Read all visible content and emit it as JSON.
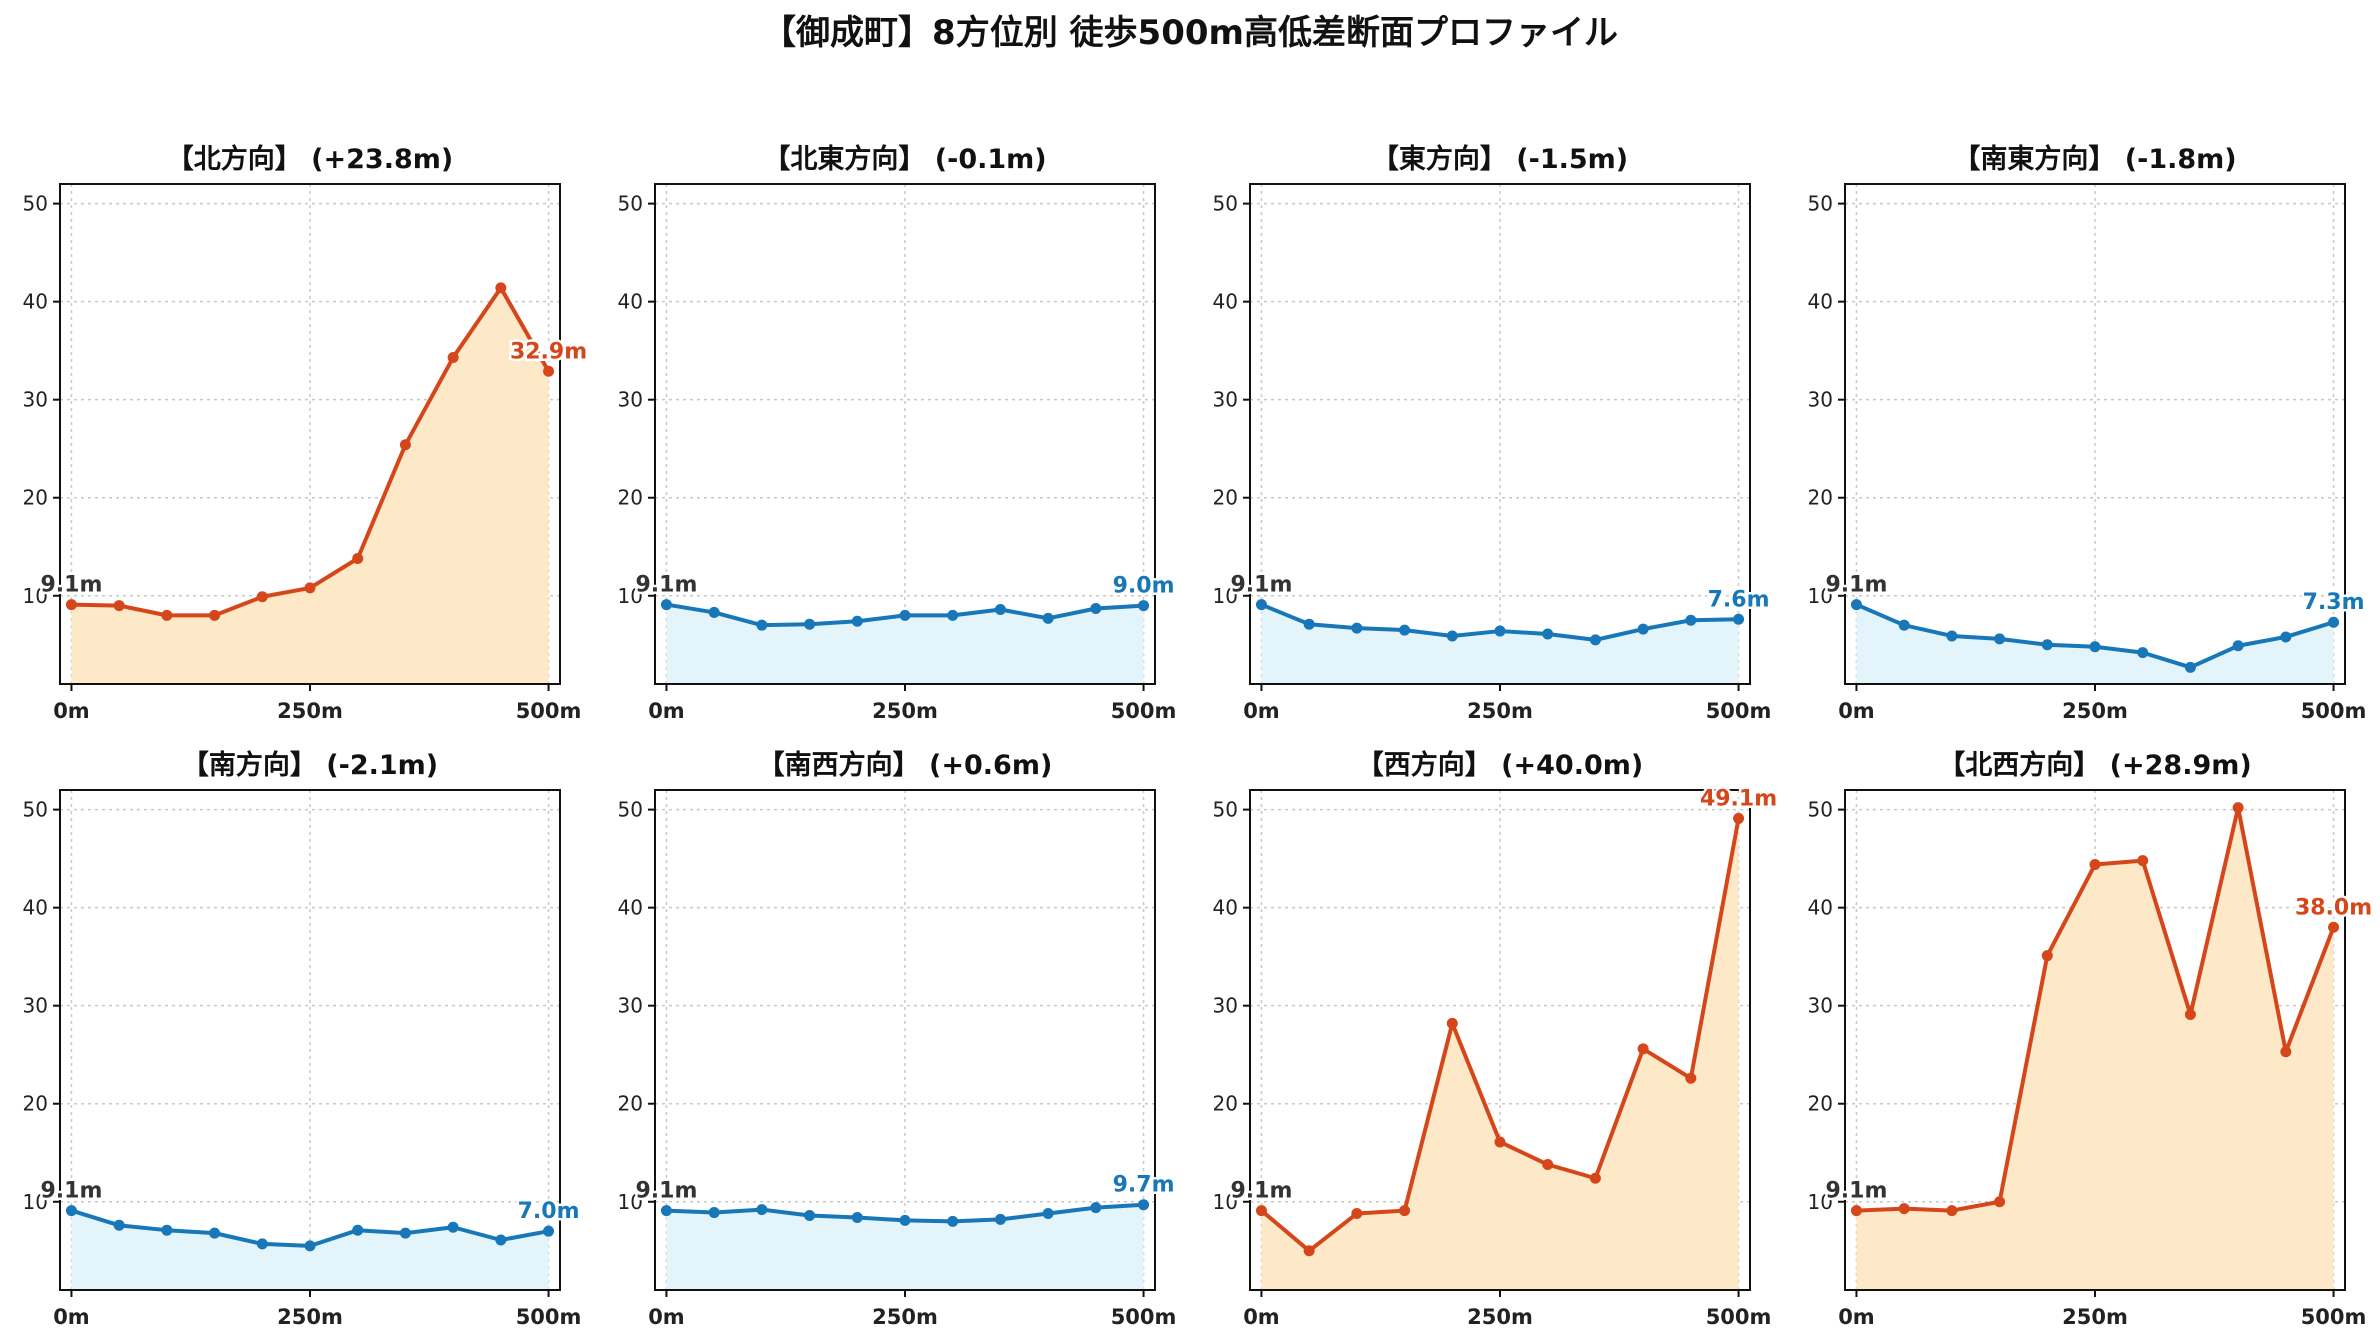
{
  "title": "【御成町】8方位別 徒歩500m高低差断面プロファイル",
  "colors": {
    "up_line": "#d6461b",
    "up_fill": "#fde8c8",
    "down_line": "#1777b8",
    "down_fill": "#e4f4fb",
    "start_label": "#333333"
  },
  "chart_data": [
    {
      "type": "area",
      "title": "【北方向】 (+23.8m)",
      "trend": "up",
      "x": [
        0,
        50,
        100,
        150,
        200,
        250,
        300,
        350,
        400,
        450,
        500
      ],
      "values": [
        9.1,
        9.0,
        8.0,
        8.0,
        9.9,
        10.8,
        13.8,
        25.4,
        34.3,
        41.4,
        32.9
      ],
      "xticks": [
        "0m",
        "250m",
        "500m"
      ],
      "yticks": [
        "10",
        "20",
        "30",
        "40",
        "50"
      ],
      "ylim": [
        1,
        52
      ],
      "xlim": [
        -12,
        512
      ],
      "start_label": "9.1m",
      "end_label": "32.9m",
      "grid": true
    },
    {
      "type": "area",
      "title": "【北東方向】 (-0.1m)",
      "trend": "down",
      "x": [
        0,
        50,
        100,
        150,
        200,
        250,
        300,
        350,
        400,
        450,
        500
      ],
      "values": [
        9.1,
        8.3,
        7.0,
        7.1,
        7.4,
        8.0,
        8.0,
        8.6,
        7.7,
        8.7,
        9.0
      ],
      "xticks": [
        "0m",
        "250m",
        "500m"
      ],
      "yticks": [
        "10",
        "20",
        "30",
        "40",
        "50"
      ],
      "ylim": [
        1,
        52
      ],
      "xlim": [
        -12,
        512
      ],
      "start_label": "9.1m",
      "end_label": "9.0m",
      "grid": true
    },
    {
      "type": "area",
      "title": "【東方向】 (-1.5m)",
      "trend": "down",
      "x": [
        0,
        50,
        100,
        150,
        200,
        250,
        300,
        350,
        400,
        450,
        500
      ],
      "values": [
        9.1,
        7.1,
        6.7,
        6.5,
        5.9,
        6.4,
        6.1,
        5.5,
        6.6,
        7.5,
        7.6
      ],
      "xticks": [
        "0m",
        "250m",
        "500m"
      ],
      "yticks": [
        "10",
        "20",
        "30",
        "40",
        "50"
      ],
      "ylim": [
        1,
        52
      ],
      "xlim": [
        -12,
        512
      ],
      "start_label": "9.1m",
      "end_label": "7.6m",
      "grid": true
    },
    {
      "type": "area",
      "title": "【南東方向】 (-1.8m)",
      "trend": "down",
      "x": [
        0,
        50,
        100,
        150,
        200,
        250,
        300,
        350,
        400,
        450,
        500
      ],
      "values": [
        9.1,
        7.0,
        5.9,
        5.6,
        5.0,
        4.8,
        4.2,
        2.7,
        4.9,
        5.8,
        7.3
      ],
      "xticks": [
        "0m",
        "250m",
        "500m"
      ],
      "yticks": [
        "10",
        "20",
        "30",
        "40",
        "50"
      ],
      "ylim": [
        1,
        52
      ],
      "xlim": [
        -12,
        512
      ],
      "start_label": "9.1m",
      "end_label": "7.3m",
      "grid": true
    },
    {
      "type": "area",
      "title": "【南方向】 (-2.1m)",
      "trend": "down",
      "x": [
        0,
        50,
        100,
        150,
        200,
        250,
        300,
        350,
        400,
        450,
        500
      ],
      "values": [
        9.1,
        7.6,
        7.1,
        6.8,
        5.7,
        5.5,
        7.1,
        6.8,
        7.4,
        6.1,
        7.0
      ],
      "xticks": [
        "0m",
        "250m",
        "500m"
      ],
      "yticks": [
        "10",
        "20",
        "30",
        "40",
        "50"
      ],
      "ylim": [
        1,
        52
      ],
      "xlim": [
        -12,
        512
      ],
      "start_label": "9.1m",
      "end_label": "7.0m",
      "grid": true
    },
    {
      "type": "area",
      "title": "【南西方向】 (+0.6m)",
      "trend": "down",
      "x": [
        0,
        50,
        100,
        150,
        200,
        250,
        300,
        350,
        400,
        450,
        500
      ],
      "values": [
        9.1,
        8.9,
        9.2,
        8.6,
        8.4,
        8.1,
        8.0,
        8.2,
        8.8,
        9.4,
        9.7
      ],
      "xticks": [
        "0m",
        "250m",
        "500m"
      ],
      "yticks": [
        "10",
        "20",
        "30",
        "40",
        "50"
      ],
      "ylim": [
        1,
        52
      ],
      "xlim": [
        -12,
        512
      ],
      "start_label": "9.1m",
      "end_label": "9.7m",
      "grid": true
    },
    {
      "type": "area",
      "title": "【西方向】 (+40.0m)",
      "trend": "up",
      "x": [
        0,
        50,
        100,
        150,
        200,
        250,
        300,
        350,
        400,
        450,
        500
      ],
      "values": [
        9.1,
        5.0,
        8.8,
        9.1,
        28.2,
        16.1,
        13.8,
        12.4,
        25.6,
        22.6,
        49.1
      ],
      "xticks": [
        "0m",
        "250m",
        "500m"
      ],
      "yticks": [
        "10",
        "20",
        "30",
        "40",
        "50"
      ],
      "ylim": [
        1,
        52
      ],
      "xlim": [
        -12,
        512
      ],
      "start_label": "9.1m",
      "end_label": "49.1m",
      "grid": true
    },
    {
      "type": "area",
      "title": "【北西方向】 (+28.9m)",
      "trend": "up",
      "x": [
        0,
        50,
        100,
        150,
        200,
        250,
        300,
        350,
        400,
        450,
        500
      ],
      "values": [
        9.1,
        9.3,
        9.1,
        10.0,
        35.1,
        44.4,
        44.8,
        29.1,
        50.2,
        25.3,
        38.0
      ],
      "xticks": [
        "0m",
        "250m",
        "500m"
      ],
      "yticks": [
        "10",
        "20",
        "30",
        "40",
        "50"
      ],
      "ylim": [
        1,
        52
      ],
      "xlim": [
        -12,
        512
      ],
      "start_label": "9.1m",
      "end_label": "38.0m",
      "grid": true
    }
  ]
}
